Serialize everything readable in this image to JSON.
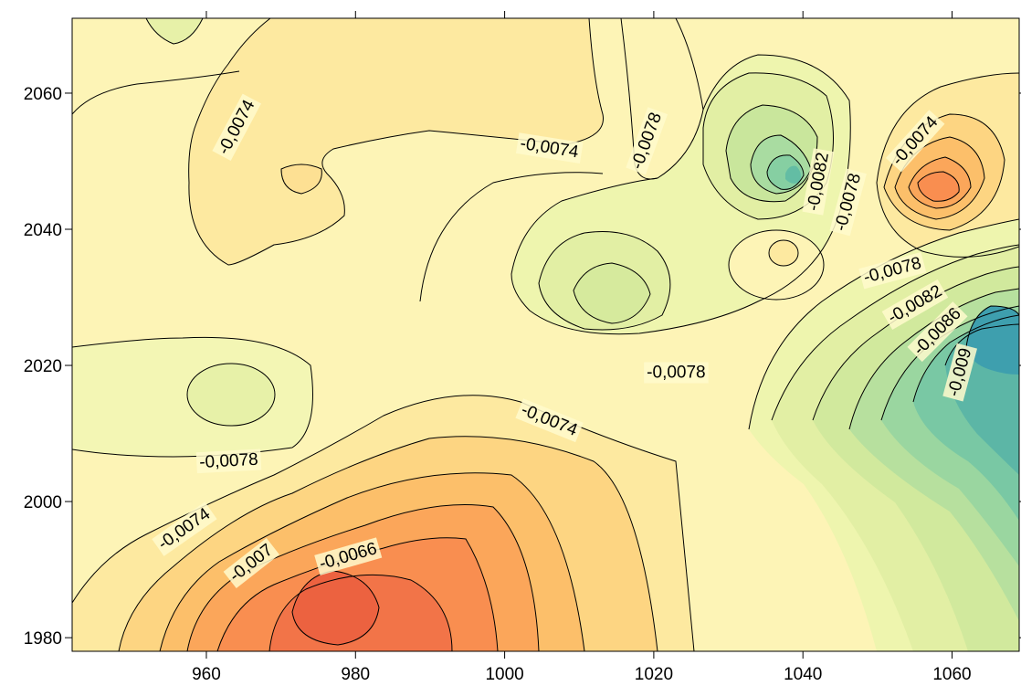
{
  "chart_data": {
    "type": "heatmap",
    "subtype": "filled-contour",
    "title": "",
    "xlabel": "",
    "ylabel": "",
    "xlim": [
      942,
      1069
    ],
    "ylim": [
      1978,
      2071
    ],
    "x_ticks": [
      960,
      980,
      1000,
      1020,
      1040,
      1060
    ],
    "y_ticks": [
      1980,
      2000,
      2020,
      2040,
      2060
    ],
    "x_tick_labels": [
      "960",
      "980",
      "1000",
      "1020",
      "1040",
      "1060"
    ],
    "y_tick_labels": [
      "1980",
      "2000",
      "2020",
      "2040",
      "2060"
    ],
    "colormap": "spectral (orange-red = high, blue-teal = low)",
    "contour_interval": 0.0004,
    "levels": [
      -0.0094,
      -0.009,
      -0.0086,
      -0.0082,
      -0.0078,
      -0.0074,
      -0.007,
      -0.0066,
      -0.0062
    ],
    "features": [
      {
        "kind": "max",
        "x": 980,
        "y": 1984,
        "value": -0.0062
      },
      {
        "kind": "max",
        "x": 1057,
        "y": 2046,
        "value": -0.0068
      },
      {
        "kind": "max",
        "x": 972,
        "y": 2046,
        "value": -0.0072
      },
      {
        "kind": "max",
        "x": 1038,
        "y": 2035,
        "value": -0.0074
      },
      {
        "kind": "min",
        "x": 1039,
        "y": 2047,
        "value": -0.0086
      },
      {
        "kind": "min",
        "x": 1064,
        "y": 2023,
        "value": -0.0094
      },
      {
        "kind": "min",
        "x": 1016,
        "y": 2030,
        "value": -0.0082
      },
      {
        "kind": "min",
        "x": 964,
        "y": 2015,
        "value": -0.0078
      }
    ],
    "contour_labels": [
      {
        "text": "-0,0074",
        "x": 964,
        "y": 2055,
        "angle": -62
      },
      {
        "text": "-0,0074",
        "x": 1006,
        "y": 2052,
        "angle": 9
      },
      {
        "text": "-0,0078",
        "x": 1019,
        "y": 2053,
        "angle": -70
      },
      {
        "text": "-0,0082",
        "x": 1042,
        "y": 2047,
        "angle": -80
      },
      {
        "text": "-0,0078",
        "x": 1046,
        "y": 2044,
        "angle": -75
      },
      {
        "text": "-0,0074",
        "x": 1055,
        "y": 2053,
        "angle": -48
      },
      {
        "text": "-0,0078",
        "x": 1052,
        "y": 2034,
        "angle": -15
      },
      {
        "text": "-0,0082",
        "x": 1055,
        "y": 2029,
        "angle": -30
      },
      {
        "text": "-0,0086",
        "x": 1058,
        "y": 2025,
        "angle": -45
      },
      {
        "text": "-0,009",
        "x": 1061,
        "y": 2019,
        "angle": -75
      },
      {
        "text": "-0,0078",
        "x": 1023,
        "y": 2019,
        "angle": 0
      },
      {
        "text": "-0,0074",
        "x": 1006,
        "y": 2012,
        "angle": 22
      },
      {
        "text": "-0,0078",
        "x": 963,
        "y": 2006,
        "angle": -3
      },
      {
        "text": "-0,0074",
        "x": 957,
        "y": 1996,
        "angle": -35
      },
      {
        "text": "-0,007",
        "x": 966,
        "y": 1991,
        "angle": -38
      },
      {
        "text": "-0,0066",
        "x": 979,
        "y": 1992,
        "angle": -16
      }
    ]
  }
}
